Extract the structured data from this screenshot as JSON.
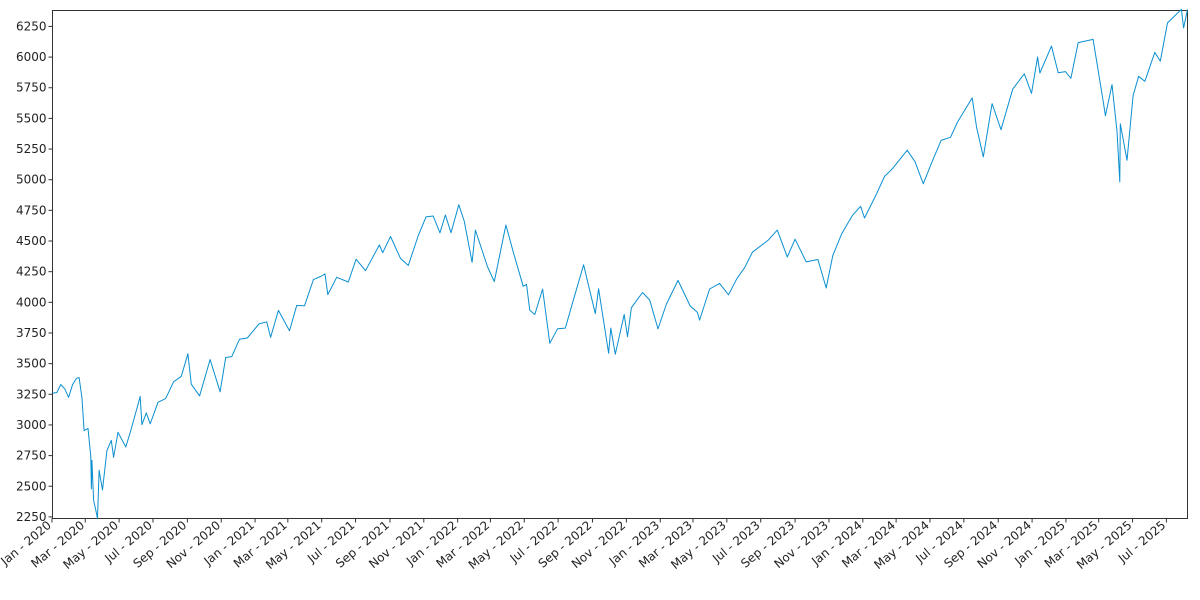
{
  "theme": {
    "line_color": "#0a8fd0"
  },
  "chart_data": {
    "type": "line",
    "title": "",
    "xlabel": "",
    "ylabel": "",
    "grid": false,
    "legend": "none",
    "x_range": [
      "2020-01-02",
      "2025-08-08"
    ],
    "ylim": [
      2237,
      6380
    ],
    "y_ticks": [
      2250,
      2500,
      2750,
      3000,
      3250,
      3500,
      3750,
      4000,
      4250,
      4500,
      4750,
      5000,
      5250,
      5500,
      5750,
      6000,
      6250
    ],
    "x_ticks": [
      {
        "date": "2020-01-01",
        "label": "Jan - 2020"
      },
      {
        "date": "2020-03-01",
        "label": "Mar - 2020"
      },
      {
        "date": "2020-05-01",
        "label": "May - 2020"
      },
      {
        "date": "2020-07-01",
        "label": "Jul - 2020"
      },
      {
        "date": "2020-09-01",
        "label": "Sep - 2020"
      },
      {
        "date": "2020-11-01",
        "label": "Nov - 2020"
      },
      {
        "date": "2021-01-01",
        "label": "Jan - 2021"
      },
      {
        "date": "2021-03-01",
        "label": "Mar - 2021"
      },
      {
        "date": "2021-05-01",
        "label": "May - 2021"
      },
      {
        "date": "2021-07-01",
        "label": "Jul - 2021"
      },
      {
        "date": "2021-09-01",
        "label": "Sep - 2021"
      },
      {
        "date": "2021-11-01",
        "label": "Nov - 2021"
      },
      {
        "date": "2022-01-01",
        "label": "Jan - 2022"
      },
      {
        "date": "2022-03-01",
        "label": "Mar - 2022"
      },
      {
        "date": "2022-05-01",
        "label": "May - 2022"
      },
      {
        "date": "2022-07-01",
        "label": "Jul - 2022"
      },
      {
        "date": "2022-09-01",
        "label": "Sep - 2022"
      },
      {
        "date": "2022-11-01",
        "label": "Nov - 2022"
      },
      {
        "date": "2023-01-01",
        "label": "Jan - 2023"
      },
      {
        "date": "2023-03-01",
        "label": "Mar - 2023"
      },
      {
        "date": "2023-05-01",
        "label": "May - 2023"
      },
      {
        "date": "2023-07-01",
        "label": "Jul - 2023"
      },
      {
        "date": "2023-09-01",
        "label": "Sep - 2023"
      },
      {
        "date": "2023-11-01",
        "label": "Nov - 2023"
      },
      {
        "date": "2024-01-01",
        "label": "Jan - 2024"
      },
      {
        "date": "2024-03-01",
        "label": "Mar - 2024"
      },
      {
        "date": "2024-05-01",
        "label": "May - 2024"
      },
      {
        "date": "2024-07-01",
        "label": "Jul - 2024"
      },
      {
        "date": "2024-09-01",
        "label": "Sep - 2024"
      },
      {
        "date": "2024-11-01",
        "label": "Nov - 2024"
      },
      {
        "date": "2025-01-01",
        "label": "Jan - 2025"
      },
      {
        "date": "2025-03-01",
        "label": "Mar - 2025"
      },
      {
        "date": "2025-05-01",
        "label": "May - 2025"
      },
      {
        "date": "2025-07-01",
        "label": "Jul - 2025"
      }
    ],
    "series": [
      {
        "points": [
          [
            "2020-01-02",
            3258
          ],
          [
            "2020-01-10",
            3265
          ],
          [
            "2020-01-17",
            3330
          ],
          [
            "2020-01-24",
            3295
          ],
          [
            "2020-01-31",
            3225
          ],
          [
            "2020-02-07",
            3327
          ],
          [
            "2020-02-14",
            3380
          ],
          [
            "2020-02-19",
            3386
          ],
          [
            "2020-02-24",
            3225
          ],
          [
            "2020-02-28",
            2954
          ],
          [
            "2020-03-06",
            2972
          ],
          [
            "2020-03-11",
            2741
          ],
          [
            "2020-03-12",
            2480
          ],
          [
            "2020-03-13",
            2711
          ],
          [
            "2020-03-16",
            2386
          ],
          [
            "2020-03-20",
            2305
          ],
          [
            "2020-03-23",
            2237
          ],
          [
            "2020-03-26",
            2630
          ],
          [
            "2020-04-01",
            2470
          ],
          [
            "2020-04-09",
            2790
          ],
          [
            "2020-04-17",
            2875
          ],
          [
            "2020-04-21",
            2736
          ],
          [
            "2020-04-29",
            2940
          ],
          [
            "2020-05-13",
            2820
          ],
          [
            "2020-05-22",
            2955
          ],
          [
            "2020-06-08",
            3232
          ],
          [
            "2020-06-11",
            3002
          ],
          [
            "2020-06-19",
            3098
          ],
          [
            "2020-06-26",
            3009
          ],
          [
            "2020-07-10",
            3185
          ],
          [
            "2020-07-24",
            3215
          ],
          [
            "2020-08-07",
            3351
          ],
          [
            "2020-08-21",
            3397
          ],
          [
            "2020-09-02",
            3580
          ],
          [
            "2020-09-08",
            3332
          ],
          [
            "2020-09-23",
            3237
          ],
          [
            "2020-10-12",
            3534
          ],
          [
            "2020-10-30",
            3270
          ],
          [
            "2020-11-09",
            3550
          ],
          [
            "2020-11-20",
            3557
          ],
          [
            "2020-12-04",
            3699
          ],
          [
            "2020-12-18",
            3709
          ],
          [
            "2021-01-08",
            3824
          ],
          [
            "2021-01-22",
            3841
          ],
          [
            "2021-01-29",
            3714
          ],
          [
            "2021-02-12",
            3934
          ],
          [
            "2021-03-04",
            3768
          ],
          [
            "2021-03-17",
            3974
          ],
          [
            "2021-03-31",
            3972
          ],
          [
            "2021-04-16",
            4185
          ],
          [
            "2021-04-29",
            4211
          ],
          [
            "2021-05-07",
            4232
          ],
          [
            "2021-05-12",
            4063
          ],
          [
            "2021-05-28",
            4204
          ],
          [
            "2021-06-18",
            4166
          ],
          [
            "2021-07-02",
            4352
          ],
          [
            "2021-07-19",
            4258
          ],
          [
            "2021-08-13",
            4468
          ],
          [
            "2021-08-19",
            4405
          ],
          [
            "2021-09-02",
            4537
          ],
          [
            "2021-09-20",
            4358
          ],
          [
            "2021-10-04",
            4300
          ],
          [
            "2021-10-22",
            4545
          ],
          [
            "2021-11-05",
            4697
          ],
          [
            "2021-11-18",
            4704
          ],
          [
            "2021-11-30",
            4567
          ],
          [
            "2021-12-10",
            4712
          ],
          [
            "2021-12-20",
            4568
          ],
          [
            "2022-01-03",
            4796
          ],
          [
            "2022-01-13",
            4660
          ],
          [
            "2022-01-27",
            4326
          ],
          [
            "2022-02-02",
            4589
          ],
          [
            "2022-02-24",
            4288
          ],
          [
            "2022-03-08",
            4170
          ],
          [
            "2022-03-29",
            4631
          ],
          [
            "2022-04-12",
            4397
          ],
          [
            "2022-04-29",
            4131
          ],
          [
            "2022-05-05",
            4147
          ],
          [
            "2022-05-11",
            3935
          ],
          [
            "2022-05-20",
            3901
          ],
          [
            "2022-06-03",
            4108
          ],
          [
            "2022-06-16",
            3666
          ],
          [
            "2022-06-30",
            3785
          ],
          [
            "2022-07-14",
            3790
          ],
          [
            "2022-08-02",
            4090
          ],
          [
            "2022-08-16",
            4305
          ],
          [
            "2022-09-06",
            3908
          ],
          [
            "2022-09-12",
            4110
          ],
          [
            "2022-09-30",
            3585
          ],
          [
            "2022-10-04",
            3790
          ],
          [
            "2022-10-12",
            3577
          ],
          [
            "2022-10-28",
            3901
          ],
          [
            "2022-11-03",
            3719
          ],
          [
            "2022-11-10",
            3956
          ],
          [
            "2022-11-30",
            4080
          ],
          [
            "2022-12-13",
            4019
          ],
          [
            "2022-12-28",
            3783
          ],
          [
            "2023-01-12",
            3983
          ],
          [
            "2023-02-02",
            4179
          ],
          [
            "2023-02-24",
            3970
          ],
          [
            "2023-03-09",
            3918
          ],
          [
            "2023-03-13",
            3855
          ],
          [
            "2023-03-31",
            4109
          ],
          [
            "2023-04-18",
            4154
          ],
          [
            "2023-05-04",
            4061
          ],
          [
            "2023-05-19",
            4192
          ],
          [
            "2023-06-02",
            4282
          ],
          [
            "2023-06-16",
            4409
          ],
          [
            "2023-07-14",
            4505
          ],
          [
            "2023-07-31",
            4589
          ],
          [
            "2023-08-18",
            4370
          ],
          [
            "2023-09-01",
            4515
          ],
          [
            "2023-09-21",
            4330
          ],
          [
            "2023-10-12",
            4349
          ],
          [
            "2023-10-27",
            4117
          ],
          [
            "2023-11-08",
            4382
          ],
          [
            "2023-11-24",
            4559
          ],
          [
            "2023-12-13",
            4707
          ],
          [
            "2023-12-28",
            4783
          ],
          [
            "2024-01-04",
            4688
          ],
          [
            "2024-01-24",
            4868
          ],
          [
            "2024-02-09",
            5026
          ],
          [
            "2024-02-23",
            5088
          ],
          [
            "2024-03-21",
            5241
          ],
          [
            "2024-04-04",
            5147
          ],
          [
            "2024-04-19",
            4967
          ],
          [
            "2024-05-03",
            5127
          ],
          [
            "2024-05-21",
            5321
          ],
          [
            "2024-06-07",
            5346
          ],
          [
            "2024-06-20",
            5473
          ],
          [
            "2024-07-16",
            5667
          ],
          [
            "2024-07-24",
            5427
          ],
          [
            "2024-08-05",
            5186
          ],
          [
            "2024-08-21",
            5621
          ],
          [
            "2024-09-06",
            5408
          ],
          [
            "2024-09-27",
            5738
          ],
          [
            "2024-10-18",
            5864
          ],
          [
            "2024-10-31",
            5705
          ],
          [
            "2024-11-11",
            6001
          ],
          [
            "2024-11-15",
            5870
          ],
          [
            "2024-12-06",
            6090
          ],
          [
            "2024-12-18",
            5872
          ],
          [
            "2024-12-31",
            5882
          ],
          [
            "2025-01-10",
            5827
          ],
          [
            "2025-01-23",
            6118
          ],
          [
            "2025-02-19",
            6144
          ],
          [
            "2025-03-10",
            5614
          ],
          [
            "2025-03-13",
            5521
          ],
          [
            "2025-03-25",
            5776
          ],
          [
            "2025-04-03",
            5396
          ],
          [
            "2025-04-08",
            4982
          ],
          [
            "2025-04-09",
            5457
          ],
          [
            "2025-04-21",
            5158
          ],
          [
            "2025-05-02",
            5687
          ],
          [
            "2025-05-12",
            5844
          ],
          [
            "2025-05-23",
            5802
          ],
          [
            "2025-06-10",
            6038
          ],
          [
            "2025-06-20",
            5967
          ],
          [
            "2025-07-03",
            6279
          ],
          [
            "2025-07-28",
            6389
          ],
          [
            "2025-08-01",
            6238
          ],
          [
            "2025-08-08",
            6389
          ]
        ]
      }
    ]
  }
}
